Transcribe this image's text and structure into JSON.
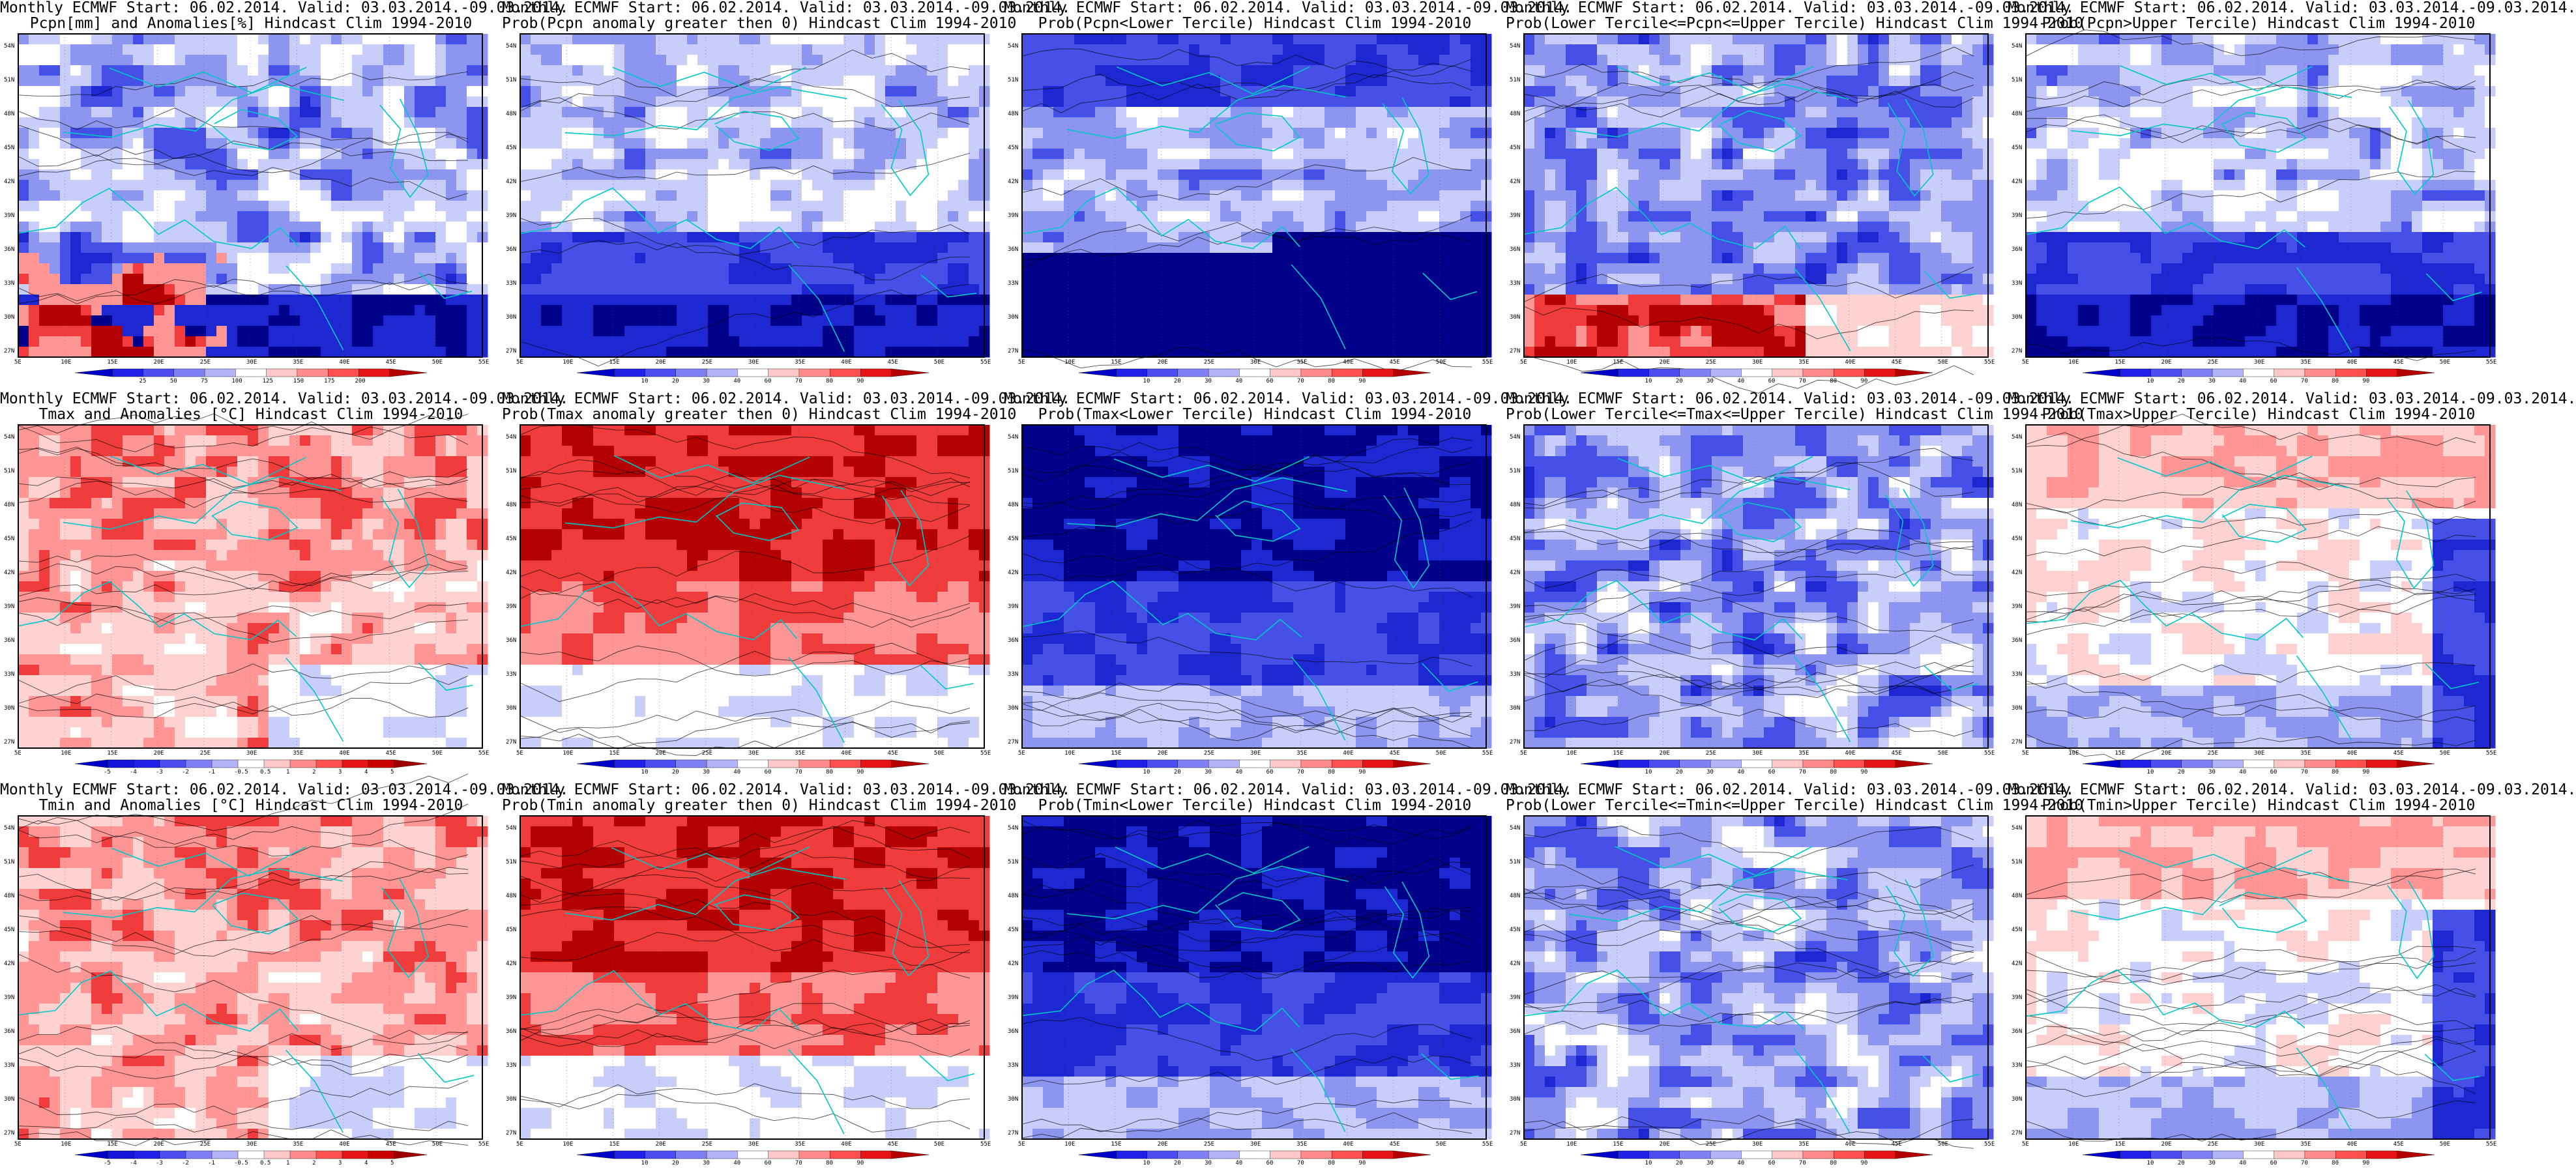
{
  "titles": [
    [
      "Monthly ECMWF Start: 06.02.2014. Valid: 03.03.2014.-09.03.2014.",
      "Pcpn[mm] and Anomalies[%] Hindcast Clim 1994-2010"
    ],
    [
      "Monthly ECMWF Start: 06.02.2014. Valid: 03.03.2014.-09.03.2014.",
      "Prob(Pcpn anomaly greater then 0) Hindcast Clim 1994-2010"
    ],
    [
      "Monthly ECMWF Start: 06.02.2014. Valid: 03.03.2014.-09.03.2014.",
      "Prob(Pcpn<Lower Tercile) Hindcast Clim 1994-2010"
    ],
    [
      "Monthly ECMWF Start: 06.02.2014. Valid: 03.03.2014.-09.03.2014.",
      "Prob(Lower Tercile<=Pcpn<=Upper Tercile) Hindcast Clim 1994-2010"
    ],
    [
      "Monthly ECMWF Start: 06.02.2014. Valid: 03.03.2014.-09.03.2014.",
      "Prob(Pcpn>Upper Tercile) Hindcast Clim 1994-2010"
    ],
    [
      "Monthly ECMWF Start: 06.02.2014. Valid: 03.03.2014.-09.03.2014.",
      "Tmax and Anomalies [°C] Hindcast Clim 1994-2010"
    ],
    [
      "Monthly ECMWF Start: 06.02.2014. Valid: 03.03.2014.-09.03.2014.",
      "Prob(Tmax anomaly greater then 0) Hindcast Clim 1994-2010"
    ],
    [
      "Monthly ECMWF Start: 06.02.2014. Valid: 03.03.2014.-09.03.2014.",
      "Prob(Tmax<Lower Tercile) Hindcast Clim 1994-2010"
    ],
    [
      "Monthly ECMWF Start: 06.02.2014. Valid: 03.03.2014.-09.03.2014.",
      "Prob(Lower Tercile<=Tmax<=Upper Tercile) Hindcast Clim 1994-2010"
    ],
    [
      "Monthly ECMWF Start: 06.02.2014. Valid: 03.03.2014.-09.03.2014.",
      "Prob(Tmax>Upper Tercile) Hindcast Clim 1994-2010"
    ],
    [
      "Monthly ECMWF Start: 06.02.2014. Valid: 03.03.2014.-09.03.2014.",
      "Tmin and Anomalies [°C] Hindcast Clim 1994-2010"
    ],
    [
      "Monthly ECMWF Start: 06.02.2014. Valid: 03.03.2014.-09.03.2014.",
      "Prob(Tmin anomaly greater then 0) Hindcast Clim 1994-2010"
    ],
    [
      "Monthly ECMWF Start: 06.02.2014. Valid: 03.03.2014.-09.03.2014.",
      "Prob(Tmin<Lower Tercile) Hindcast Clim 1994-2010"
    ],
    [
      "Monthly ECMWF Start: 06.02.2014. Valid: 03.03.2014.-09.03.2014.",
      "Prob(Lower Tercile<=Tmin<=Upper Tercile) Hindcast Clim 1994-2010"
    ],
    [
      "Monthly ECMWF Start: 06.02.2014. Valid: 03.03.2014.-09.03.2014.",
      "Prob(Tmin>Upper Tercile) Hindcast Clim 1994-2010"
    ]
  ],
  "lat_labels": [
    "54N",
    "51N",
    "48N",
    "45N",
    "42N",
    "39N",
    "36N",
    "33N",
    "30N",
    "27N"
  ],
  "lon_labels": [
    "5E",
    "10E",
    "15E",
    "20E",
    "25E",
    "30E",
    "35E",
    "40E",
    "45E",
    "50E",
    "55E"
  ],
  "colorbars": {
    "pcpn_anom": {
      "labels": [
        "25",
        "50",
        "75",
        "100",
        "125",
        "150",
        "175",
        "200"
      ],
      "colors": [
        "#0000c8",
        "#2020e6",
        "#4c4cf0",
        "#8080f5",
        "#b4b4fa",
        "#ffffff",
        "#ffc8c8",
        "#ff8c8c",
        "#ff5050",
        "#e61414",
        "#b40000"
      ]
    },
    "prob": {
      "labels": [
        "10",
        "20",
        "30",
        "40",
        "60",
        "70",
        "80",
        "90"
      ],
      "colors": [
        "#0000c8",
        "#2020e6",
        "#4c4cf0",
        "#8080f5",
        "#b4b4fa",
        "#ffffff",
        "#ffc8c8",
        "#ff8c8c",
        "#ff5050",
        "#e61414",
        "#b40000"
      ]
    },
    "temp_anom": {
      "labels": [
        "-5",
        "-4",
        "-3",
        "-2",
        "-1",
        "-0.5",
        "0.5",
        "1",
        "2",
        "3",
        "4",
        "5"
      ],
      "colors": [
        "#0000c8",
        "#1414d8",
        "#2020e6",
        "#4c4cf0",
        "#8080f5",
        "#b4b4fa",
        "#ffffff",
        "#ffc8c8",
        "#ff8c8c",
        "#ff5050",
        "#e61414",
        "#c80000",
        "#a00000"
      ]
    }
  },
  "panel_colorbar": [
    "pcpn_anom",
    "prob",
    "prob",
    "prob",
    "prob",
    "temp_anom",
    "prob",
    "prob",
    "prob",
    "prob",
    "temp_anom",
    "prob",
    "prob",
    "prob",
    "prob"
  ],
  "panel_scheme": [
    "pcpn_anom",
    "prob_low",
    "prob_low_strong",
    "prob_mid_red_south",
    "prob_low",
    "temp_warm",
    "temp_warm_strong",
    "cold_prob_strong",
    "mid_prob",
    "upper_warm_light",
    "temp_warm",
    "temp_warm_strong",
    "cold_prob_strong",
    "mid_prob",
    "upper_warm_light"
  ],
  "field_colors": {
    "deepblue": "#00008b",
    "blue": "#1e28d2",
    "midblue": "#4650e6",
    "lightblue": "#8c96f0",
    "paleblue": "#c8cdfa",
    "white": "#ffffff",
    "palered": "#ffd2d2",
    "lightred": "#ff9696",
    "red": "#f03c3c",
    "darkred": "#b40000",
    "coast": "#00c8c8",
    "contour": "#000000"
  }
}
